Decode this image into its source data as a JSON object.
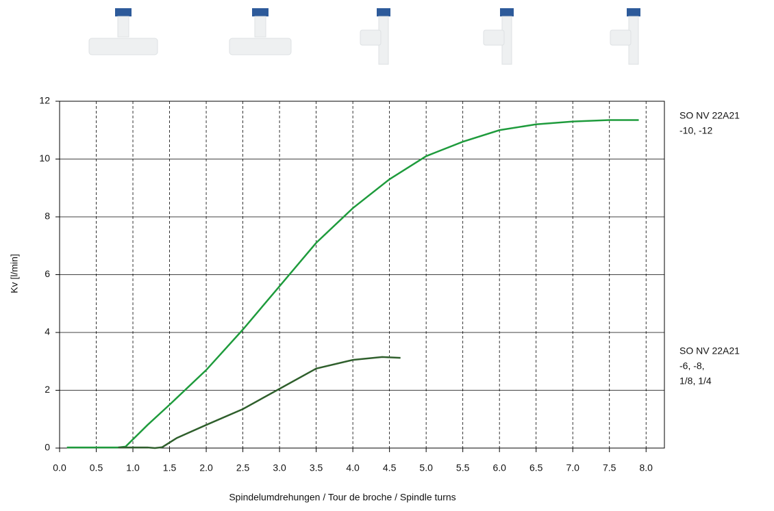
{
  "chart_data": {
    "type": "line",
    "xlabel": "Spindelumdrehungen / Tour de broche / Spindle turns",
    "ylabel": "Kv [l/min]",
    "xlim": [
      0,
      8.25
    ],
    "ylim": [
      0,
      12
    ],
    "xticks": [
      {
        "value": 0,
        "label": "0.0"
      },
      0.5,
      {
        "value": 1,
        "label": "1.0"
      },
      1.5,
      {
        "value": 2,
        "label": "2.0"
      },
      2.5,
      {
        "value": 3,
        "label": "3.0"
      },
      3.5,
      {
        "value": 4,
        "label": "4.0"
      },
      4.5,
      {
        "value": 5,
        "label": "5.0"
      },
      5.5,
      {
        "value": 6,
        "label": "6.0"
      },
      6.5,
      {
        "value": 7,
        "label": "7.0"
      },
      7.5,
      {
        "value": 8,
        "label": "8.0"
      }
    ],
    "yticks": [
      0,
      2,
      4,
      6,
      8,
      10,
      12
    ],
    "grid": true,
    "series": [
      {
        "name": [
          "SO NV 22A21",
          "-10, -12"
        ],
        "color": "#1e9b3c",
        "x": [
          0.1,
          0.8,
          0.9,
          1.0,
          1.2,
          1.5,
          2.0,
          2.5,
          3.0,
          3.5,
          4.0,
          4.5,
          5.0,
          5.5,
          6.0,
          6.5,
          7.0,
          7.5,
          7.9
        ],
        "values": [
          0.02,
          0.02,
          0.05,
          0.3,
          0.8,
          1.5,
          2.7,
          4.1,
          5.6,
          7.1,
          8.3,
          9.3,
          10.1,
          10.6,
          11.0,
          11.2,
          11.3,
          11.35,
          11.35
        ]
      },
      {
        "name": [
          "SO NV 22A21",
          "-6, -8,",
          "1/8, 1/4"
        ],
        "color": "#2f5f2c",
        "x": [
          0.8,
          1.2,
          1.3,
          1.4,
          1.6,
          2.0,
          2.5,
          3.0,
          3.5,
          4.0,
          4.4,
          4.65
        ],
        "values": [
          0.02,
          0.02,
          0,
          0.03,
          0.35,
          0.8,
          1.35,
          2.05,
          2.75,
          3.05,
          3.15,
          3.12
        ]
      }
    ]
  }
}
